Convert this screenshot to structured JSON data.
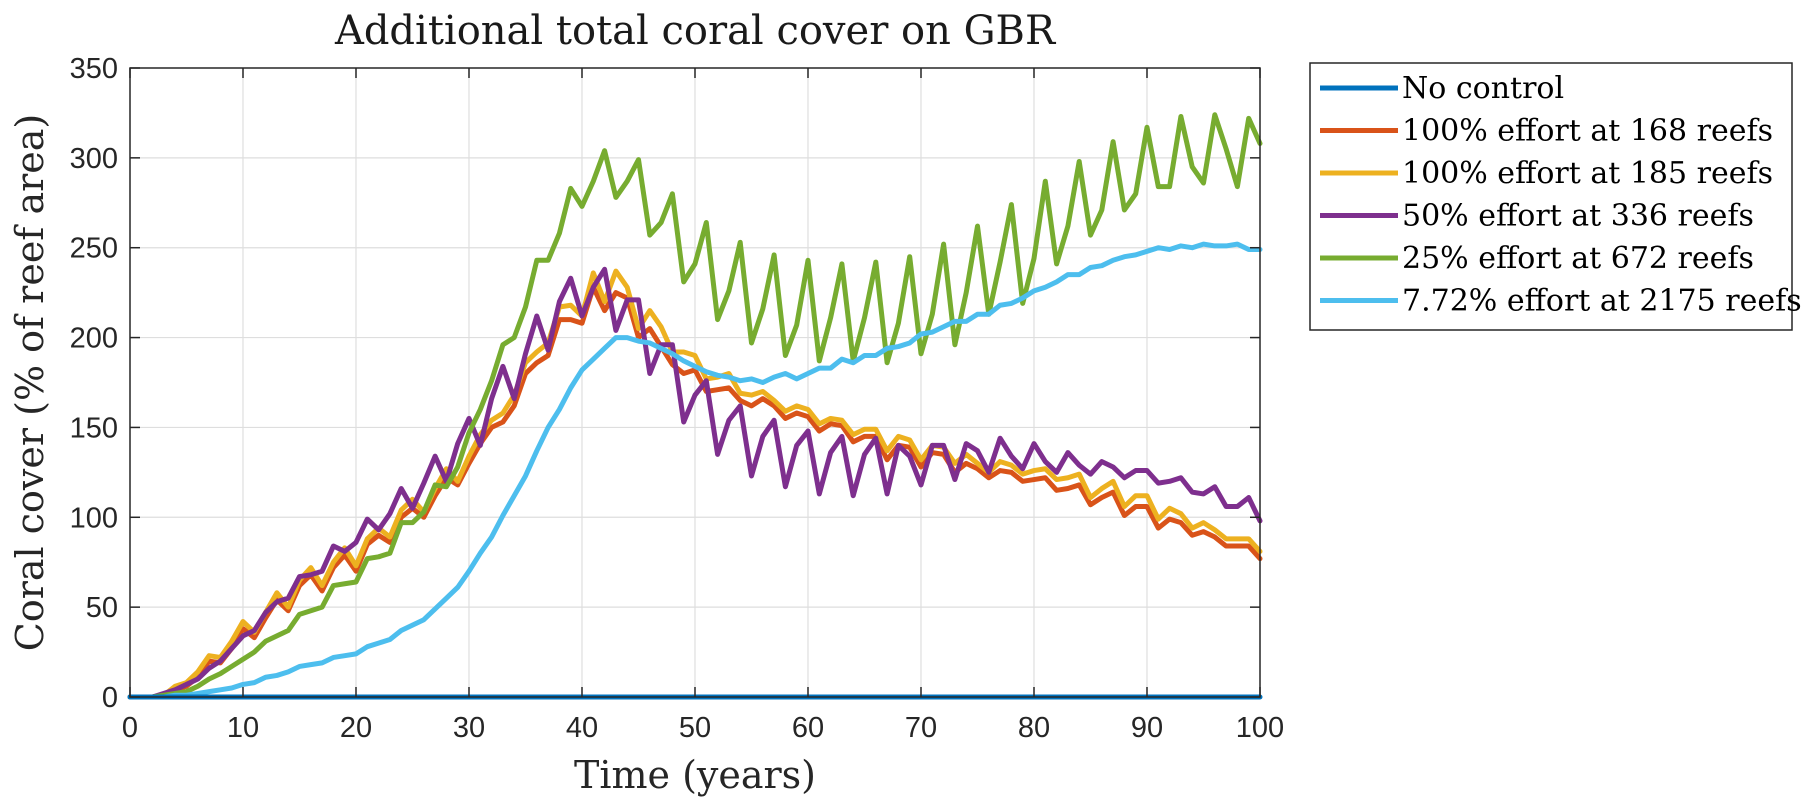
{
  "chart_data": {
    "type": "line",
    "title": "Additional total coral cover on GBR",
    "xlabel": "Time (years)",
    "ylabel": "Coral cover (% of reef area)",
    "xlim": [
      0,
      100
    ],
    "ylim": [
      0,
      350
    ],
    "xticks": [
      0,
      10,
      20,
      30,
      40,
      50,
      60,
      70,
      80,
      90,
      100
    ],
    "yticks": [
      0,
      50,
      100,
      150,
      200,
      250,
      300,
      350
    ],
    "xtick_labels": [
      "0",
      "10",
      "20",
      "30",
      "40",
      "50",
      "60",
      "70",
      "80",
      "90",
      "100"
    ],
    "ytick_labels": [
      "0",
      "50",
      "100",
      "150",
      "200",
      "250",
      "300",
      "350"
    ],
    "grid": true,
    "legend_position": "outside-top-right",
    "series": [
      {
        "name": "No control",
        "color": "#0072BD",
        "x": [
          0,
          100
        ],
        "y": [
          0,
          0
        ]
      },
      {
        "name": "100% effort at 168 reefs",
        "color": "#D95319",
        "x": [
          0,
          1,
          2,
          3,
          4,
          5,
          6,
          7,
          8,
          9,
          10,
          11,
          12,
          13,
          14,
          15,
          16,
          17,
          18,
          19,
          20,
          21,
          22,
          23,
          24,
          25,
          26,
          27,
          28,
          29,
          30,
          31,
          32,
          33,
          34,
          35,
          36,
          37,
          38,
          39,
          40,
          41,
          42,
          43,
          44,
          45,
          46,
          47,
          48,
          49,
          50,
          51,
          52,
          53,
          54,
          55,
          56,
          57,
          58,
          59,
          60,
          61,
          62,
          63,
          64,
          65,
          66,
          67,
          68,
          69,
          70,
          71,
          72,
          73,
          74,
          75,
          76,
          77,
          78,
          79,
          80,
          81,
          82,
          83,
          84,
          85,
          86,
          87,
          88,
          89,
          90,
          91,
          92,
          93,
          94,
          95,
          96,
          97,
          98,
          99,
          100
        ],
        "y": [
          0,
          0,
          0,
          1,
          4,
          6,
          11,
          20,
          19,
          27,
          38,
          33,
          44,
          54,
          48,
          62,
          68,
          59,
          72,
          79,
          70,
          85,
          90,
          86,
          100,
          105,
          100,
          112,
          122,
          118,
          130,
          141,
          150,
          153,
          162,
          180,
          186,
          190,
          210,
          210,
          208,
          228,
          215,
          225,
          222,
          200,
          205,
          195,
          185,
          180,
          182,
          170,
          171,
          172,
          165,
          162,
          166,
          162,
          155,
          158,
          156,
          148,
          152,
          151,
          142,
          145,
          145,
          132,
          140,
          139,
          128,
          136,
          135,
          125,
          130,
          127,
          122,
          126,
          125,
          120,
          121,
          122,
          115,
          116,
          118,
          107,
          111,
          114,
          101,
          106,
          106,
          94,
          99,
          97,
          90,
          92,
          89,
          84,
          84,
          84,
          77
        ]
      },
      {
        "name": "100% effort at 185 reefs",
        "color": "#EDB120",
        "x": [
          0,
          1,
          2,
          3,
          4,
          5,
          6,
          7,
          8,
          9,
          10,
          11,
          12,
          13,
          14,
          15,
          16,
          17,
          18,
          19,
          20,
          21,
          22,
          23,
          24,
          25,
          26,
          27,
          28,
          29,
          30,
          31,
          32,
          33,
          34,
          35,
          36,
          37,
          38,
          39,
          40,
          41,
          42,
          43,
          44,
          45,
          46,
          47,
          48,
          49,
          50,
          51,
          52,
          53,
          54,
          55,
          56,
          57,
          58,
          59,
          60,
          61,
          62,
          63,
          64,
          65,
          66,
          67,
          68,
          69,
          70,
          71,
          72,
          73,
          74,
          75,
          76,
          77,
          78,
          79,
          80,
          81,
          82,
          83,
          84,
          85,
          86,
          87,
          88,
          89,
          90,
          91,
          92,
          93,
          94,
          95,
          96,
          97,
          98,
          99,
          100
        ],
        "y": [
          0,
          0,
          0,
          1,
          6,
          8,
          14,
          23,
          22,
          31,
          42,
          36,
          47,
          58,
          50,
          65,
          72,
          62,
          75,
          83,
          73,
          88,
          94,
          89,
          104,
          110,
          103,
          116,
          127,
          120,
          134,
          146,
          154,
          158,
          168,
          186,
          192,
          197,
          217,
          218,
          212,
          236,
          220,
          237,
          228,
          205,
          215,
          206,
          192,
          192,
          190,
          177,
          178,
          180,
          169,
          168,
          170,
          165,
          159,
          162,
          160,
          152,
          155,
          154,
          146,
          149,
          149,
          137,
          145,
          143,
          132,
          140,
          139,
          130,
          135,
          130,
          125,
          131,
          129,
          124,
          126,
          127,
          121,
          122,
          124,
          111,
          116,
          120,
          106,
          112,
          112,
          99,
          105,
          102,
          94,
          97,
          93,
          88,
          88,
          88,
          81
        ]
      },
      {
        "name": "50% effort at 336 reefs",
        "color": "#7E2F8E",
        "x": [
          0,
          1,
          2,
          3,
          4,
          5,
          6,
          7,
          8,
          9,
          10,
          11,
          12,
          13,
          14,
          15,
          16,
          17,
          18,
          19,
          20,
          21,
          22,
          23,
          24,
          25,
          26,
          27,
          28,
          29,
          30,
          31,
          32,
          33,
          34,
          35,
          36,
          37,
          38,
          39,
          40,
          41,
          42,
          43,
          44,
          45,
          46,
          47,
          48,
          49,
          50,
          51,
          52,
          53,
          54,
          55,
          56,
          57,
          58,
          59,
          60,
          61,
          62,
          63,
          64,
          65,
          66,
          67,
          68,
          69,
          70,
          71,
          72,
          73,
          74,
          75,
          76,
          77,
          78,
          79,
          80,
          81,
          82,
          83,
          84,
          85,
          86,
          87,
          88,
          89,
          90,
          91,
          92,
          93,
          94,
          95,
          96,
          97,
          98,
          99,
          100
        ],
        "y": [
          0,
          0,
          0,
          2,
          4,
          7,
          10,
          16,
          20,
          27,
          34,
          37,
          47,
          53,
          55,
          67,
          68,
          70,
          84,
          81,
          86,
          99,
          93,
          102,
          116,
          105,
          119,
          134,
          120,
          141,
          155,
          140,
          166,
          184,
          166,
          191,
          212,
          193,
          220,
          233,
          212,
          228,
          238,
          204,
          221,
          221,
          180,
          196,
          196,
          153,
          168,
          176,
          135,
          154,
          162,
          123,
          145,
          154,
          117,
          140,
          148,
          113,
          136,
          145,
          112,
          135,
          144,
          113,
          140,
          134,
          118,
          140,
          140,
          121,
          141,
          137,
          125,
          144,
          134,
          127,
          141,
          131,
          125,
          136,
          129,
          124,
          131,
          128,
          122,
          126,
          126,
          119,
          120,
          122,
          114,
          113,
          117,
          106,
          106,
          111,
          98
        ]
      },
      {
        "name": "25% effort at 672 reefs",
        "color": "#77AC30",
        "x": [
          0,
          1,
          2,
          3,
          4,
          5,
          6,
          7,
          8,
          9,
          10,
          11,
          12,
          13,
          14,
          15,
          16,
          17,
          18,
          19,
          20,
          21,
          22,
          23,
          24,
          25,
          26,
          27,
          28,
          29,
          30,
          31,
          32,
          33,
          34,
          35,
          36,
          37,
          38,
          39,
          40,
          41,
          42,
          43,
          44,
          45,
          46,
          47,
          48,
          49,
          50,
          51,
          52,
          53,
          54,
          55,
          56,
          57,
          58,
          59,
          60,
          61,
          62,
          63,
          64,
          65,
          66,
          67,
          68,
          69,
          70,
          71,
          72,
          73,
          74,
          75,
          76,
          77,
          78,
          79,
          80,
          81,
          82,
          83,
          84,
          85,
          86,
          87,
          88,
          89,
          90,
          91,
          92,
          93,
          94,
          95,
          96,
          97,
          98,
          99,
          100
        ],
        "y": [
          0,
          0,
          0,
          1,
          2,
          3,
          6,
          10,
          13,
          17,
          21,
          25,
          31,
          34,
          37,
          46,
          48,
          50,
          62,
          63,
          64,
          77,
          78,
          80,
          97,
          97,
          103,
          118,
          117,
          128,
          147,
          160,
          176,
          196,
          200,
          217,
          243,
          243,
          258,
          283,
          273,
          287,
          304,
          278,
          287,
          299,
          257,
          264,
          280,
          231,
          241,
          264,
          210,
          226,
          253,
          197,
          216,
          246,
          190,
          207,
          243,
          187,
          211,
          241,
          187,
          211,
          242,
          186,
          208,
          245,
          191,
          213,
          252,
          196,
          225,
          262,
          213,
          242,
          274,
          219,
          244,
          287,
          241,
          262,
          298,
          257,
          271,
          309,
          271,
          280,
          317,
          284,
          284,
          323,
          295,
          286,
          324,
          305,
          284,
          322,
          308
        ]
      },
      {
        "name": "7.72% effort at 2175 reefs",
        "color": "#4DBEEE",
        "x": [
          0,
          1,
          2,
          3,
          4,
          5,
          6,
          7,
          8,
          9,
          10,
          11,
          12,
          13,
          14,
          15,
          16,
          17,
          18,
          19,
          20,
          21,
          22,
          23,
          24,
          25,
          26,
          27,
          28,
          29,
          30,
          31,
          32,
          33,
          34,
          35,
          36,
          37,
          38,
          39,
          40,
          41,
          42,
          43,
          44,
          45,
          46,
          47,
          48,
          49,
          50,
          51,
          52,
          53,
          54,
          55,
          56,
          57,
          58,
          59,
          60,
          61,
          62,
          63,
          64,
          65,
          66,
          67,
          68,
          69,
          70,
          71,
          72,
          73,
          74,
          75,
          76,
          77,
          78,
          79,
          80,
          81,
          82,
          83,
          84,
          85,
          86,
          87,
          88,
          89,
          90,
          91,
          92,
          93,
          94,
          95,
          96,
          97,
          98,
          99,
          100
        ],
        "y": [
          0,
          0,
          0,
          0,
          1,
          1,
          2,
          3,
          4,
          5,
          7,
          8,
          11,
          12,
          14,
          17,
          18,
          19,
          22,
          23,
          24,
          28,
          30,
          32,
          37,
          40,
          43,
          49,
          55,
          61,
          70,
          80,
          89,
          101,
          112,
          123,
          137,
          150,
          160,
          172,
          182,
          188,
          194,
          200,
          200,
          198,
          197,
          194,
          191,
          187,
          184,
          181,
          179,
          178,
          176,
          177,
          175,
          178,
          180,
          177,
          180,
          183,
          183,
          188,
          186,
          190,
          190,
          194,
          195,
          197,
          202,
          203,
          206,
          209,
          209,
          213,
          213,
          218,
          219,
          222,
          226,
          228,
          231,
          235,
          235,
          239,
          240,
          243,
          245,
          246,
          248,
          250,
          249,
          251,
          250,
          252,
          251,
          251,
          252,
          249,
          249
        ]
      }
    ]
  }
}
